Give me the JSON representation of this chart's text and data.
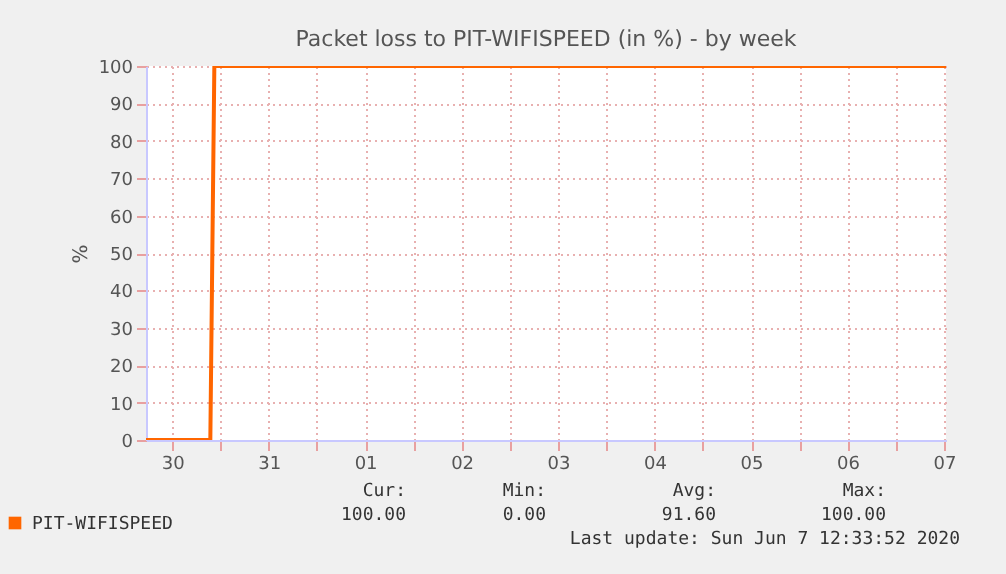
{
  "chart_data": {
    "type": "line",
    "title": "Packet loss to PIT-WIFISPEED (in %) - by week",
    "ylabel": "%",
    "x": [
      "2020-05-30T05:30",
      "2020-05-30T21:30",
      "2020-05-30T22:30",
      "2020-06-07T12:30"
    ],
    "series": [
      {
        "name": "PIT-WIFISPEED",
        "color": "#ff6600",
        "values": [
          0,
          0,
          100,
          100
        ]
      }
    ],
    "xlim": [
      "2020-05-30T05:30",
      "2020-06-07T12:30"
    ],
    "xticks": [
      {
        "value": "2020-05-30T12:00",
        "label": "30"
      },
      {
        "value": "2020-05-31T00:00",
        "label": null
      },
      {
        "value": "2020-05-31T12:00",
        "label": "31"
      },
      {
        "value": "2020-06-01T00:00",
        "label": null
      },
      {
        "value": "2020-06-01T12:00",
        "label": "01"
      },
      {
        "value": "2020-06-02T00:00",
        "label": null
      },
      {
        "value": "2020-06-02T12:00",
        "label": "02"
      },
      {
        "value": "2020-06-03T00:00",
        "label": null
      },
      {
        "value": "2020-06-03T12:00",
        "label": "03"
      },
      {
        "value": "2020-06-04T00:00",
        "label": null
      },
      {
        "value": "2020-06-04T12:00",
        "label": "04"
      },
      {
        "value": "2020-06-05T00:00",
        "label": null
      },
      {
        "value": "2020-06-05T12:00",
        "label": "05"
      },
      {
        "value": "2020-06-06T00:00",
        "label": null
      },
      {
        "value": "2020-06-06T12:00",
        "label": "06"
      },
      {
        "value": "2020-06-07T00:00",
        "label": null
      },
      {
        "value": "2020-06-07T12:00",
        "label": "07"
      }
    ],
    "ylim": [
      0,
      100
    ],
    "yticks": [
      0,
      10,
      20,
      30,
      40,
      50,
      60,
      70,
      80,
      90,
      100
    ],
    "grid": true,
    "legend": "bottom",
    "annotations": [
      "Cur:",
      "100.00",
      "Min:",
      "0.00",
      "Avg:",
      "91.60",
      "Max:",
      "100.00",
      "Last update: Sun Jun  7 12:33:52 2020"
    ]
  }
}
